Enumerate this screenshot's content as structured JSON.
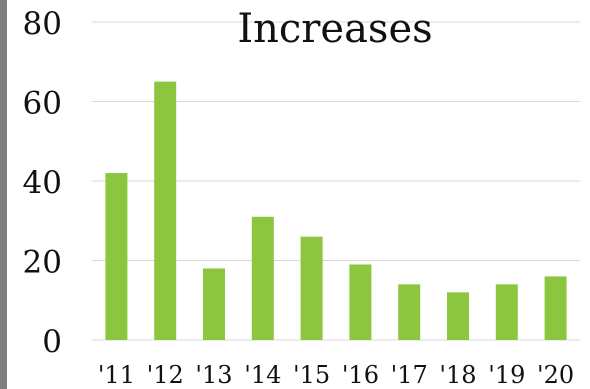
{
  "chart_data": {
    "type": "bar",
    "title": "Increases",
    "xlabel": "",
    "ylabel": "",
    "categories": [
      "'11",
      "'12",
      "'13",
      "'14",
      "'15",
      "'16",
      "'17",
      "'18",
      "'19",
      "'20"
    ],
    "values": [
      42,
      65,
      18,
      31,
      26,
      19,
      14,
      12,
      14,
      16
    ],
    "ylim": [
      0,
      80
    ],
    "yticks": [
      0,
      20,
      40,
      60,
      80
    ],
    "grid": true,
    "colors": {
      "bar": "#8cc63f",
      "grid": "#d9d9d9",
      "text": "#111111",
      "frame": "#7f7f7f"
    }
  }
}
